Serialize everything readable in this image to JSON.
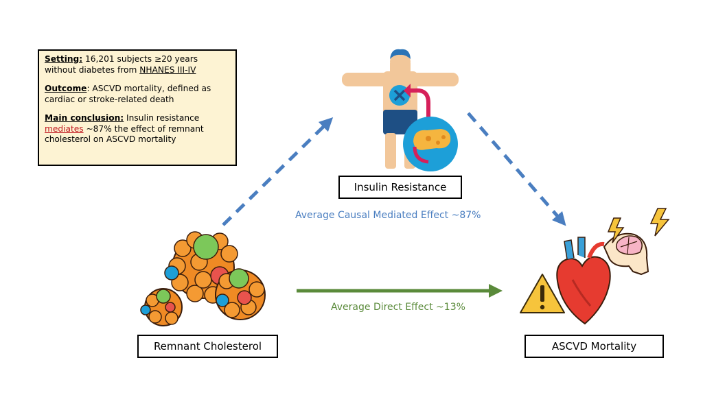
{
  "info_box": {
    "setting_label": "Setting:",
    "setting_text": " 16,201 subjects ≥20 years without diabetes from ",
    "setting_source": "NHANES III-IV",
    "outcome_label": "Outcome",
    "outcome_text": ": ASCVD mortality, defined as cardiac or stroke-related death",
    "conclusion_label": "Main conclusion:",
    "conclusion_text_1": " Insulin resistance ",
    "conclusion_highlight": "mediates",
    "conclusion_text_2": " ~87% the effect of remnant cholesterol on ASCVD mortality"
  },
  "nodes": {
    "insulin_resistance": "Insulin Resistance",
    "remnant_cholesterol": "Remnant Cholesterol",
    "ascvd_mortality": "ASCVD Mortality"
  },
  "effects": {
    "mediated": "Average Causal Mediated Effect ~87%",
    "direct": "Average Direct Effect ~13%"
  },
  "colors": {
    "mediated_arrow": "#4a7ec0",
    "direct_arrow": "#5a8a3a",
    "info_box_bg": "#fdf3d3",
    "highlight_red": "#c0161e"
  },
  "icons": {
    "insulin": "human-figure-pancreas-icon",
    "remnant": "lipoprotein-cluster-icon",
    "ascvd": "heart-brain-warning-icon"
  }
}
